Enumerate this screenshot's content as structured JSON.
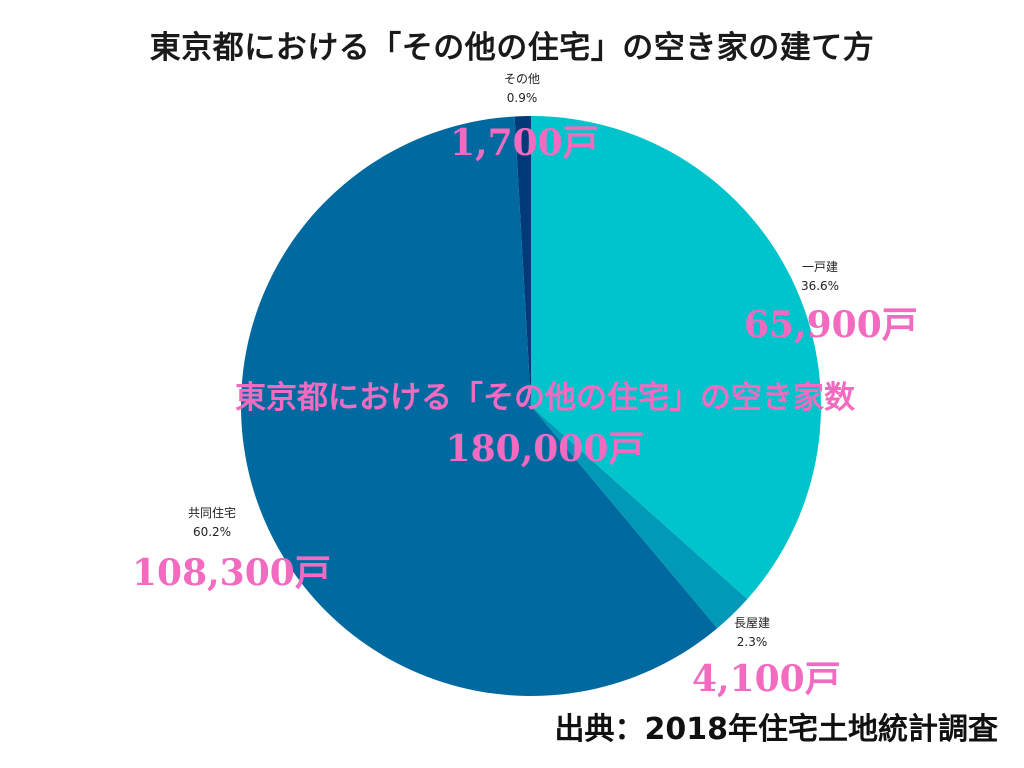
{
  "chart_data": {
    "type": "pie",
    "title": "東京都における「その他の住宅」の空き家の建て方",
    "center_title": "東京都における「その他の住宅」の空き家数",
    "center_total": "180,000戸",
    "slices": [
      {
        "name": "一戸建",
        "percent": 36.6,
        "percent_label": "36.6%",
        "count_label": "65,900戸",
        "color": "#00c4cc"
      },
      {
        "name": "長屋建",
        "percent": 2.3,
        "percent_label": "2.3%",
        "count_label": "4,100戸",
        "color": "#0099b8"
      },
      {
        "name": "共同住宅",
        "percent": 60.2,
        "percent_label": "60.2%",
        "count_label": "108,300戸",
        "color": "#006aa0"
      },
      {
        "name": "その他",
        "percent": 0.9,
        "percent_label": "0.9%",
        "count_label": "1,700戸",
        "color": "#003a78"
      }
    ],
    "source": "出典：2018年住宅土地統計調査"
  }
}
